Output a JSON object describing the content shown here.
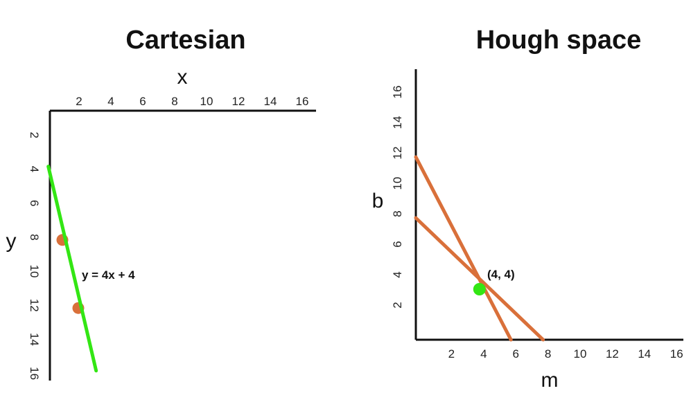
{
  "cartesian": {
    "title": "Cartesian",
    "x_label": "x",
    "y_label": "y",
    "x_ticks": [
      "2",
      "4",
      "6",
      "8",
      "10",
      "12",
      "14",
      "16"
    ],
    "y_ticks": [
      "2",
      "4",
      "6",
      "8",
      "10",
      "12",
      "14",
      "16"
    ],
    "equation": "y = 4x + 4",
    "line_color": "#33e614",
    "point_color": "#d9703a",
    "points": [
      {
        "x": 1,
        "y": 8
      },
      {
        "x": 2,
        "y": 12
      }
    ],
    "line": {
      "slope": 4,
      "intercept": 4
    }
  },
  "hough": {
    "title": "Hough space",
    "x_label": "m",
    "y_label": "b",
    "x_ticks": [
      "2",
      "4",
      "6",
      "8",
      "10",
      "12",
      "14",
      "16"
    ],
    "y_ticks": [
      "2",
      "4",
      "6",
      "8",
      "10",
      "12",
      "14",
      "16"
    ],
    "intersection_label": "(4, 4)",
    "line_color": "#d9703a",
    "point_color": "#33e614",
    "lines": [
      {
        "m0": 0,
        "b0": 12,
        "m1": 6,
        "b1": 0
      },
      {
        "m0": 0,
        "b0": 8,
        "m1": 8,
        "b1": 0
      }
    ],
    "intersection": {
      "m": 4,
      "b": 4
    }
  }
}
